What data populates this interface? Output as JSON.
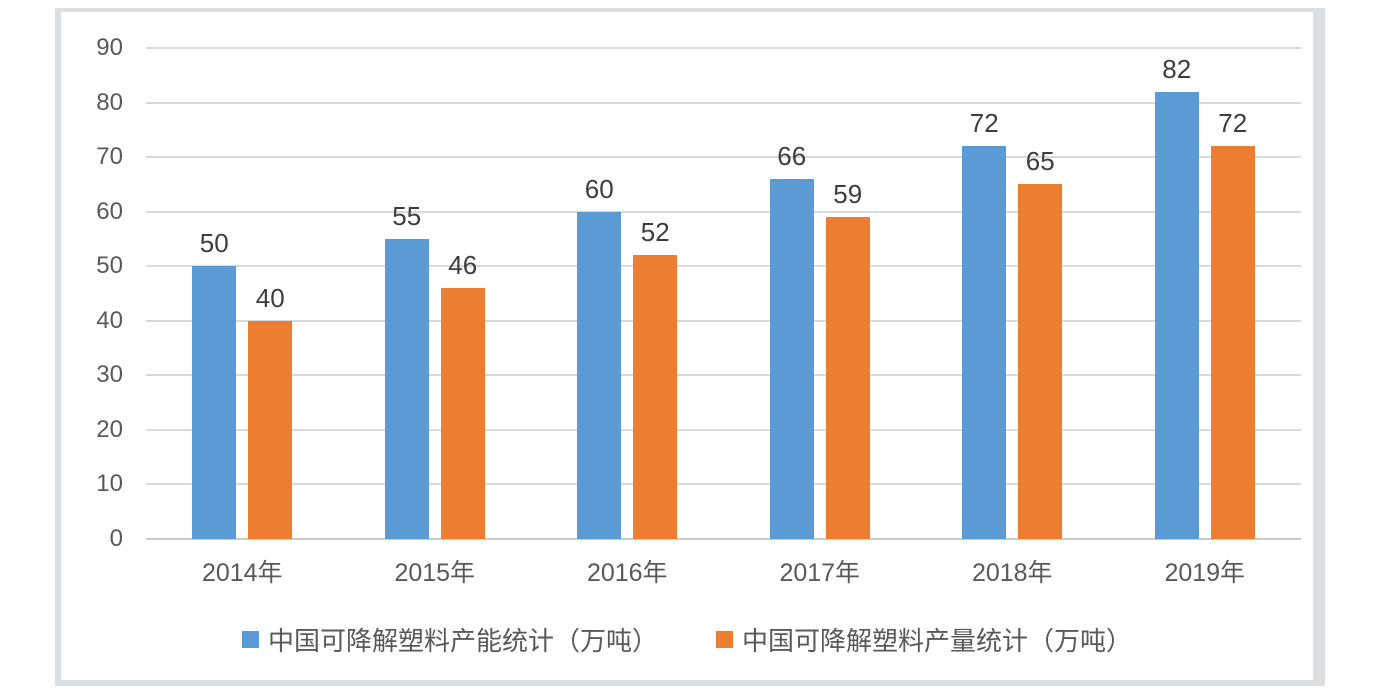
{
  "chart_data": {
    "type": "bar",
    "title": "",
    "xlabel": "",
    "ylabel": "",
    "categories": [
      "2014年",
      "2015年",
      "2016年",
      "2017年",
      "2018年",
      "2019年"
    ],
    "series": [
      {
        "name": "中国可降解塑料产能统计（万吨）",
        "values": [
          50,
          55,
          60,
          66,
          72,
          82
        ],
        "color": "#5b9bd5"
      },
      {
        "name": "中国可降解塑料产量统计（万吨）",
        "values": [
          40,
          46,
          52,
          59,
          65,
          72
        ],
        "color": "#ed7d31"
      }
    ],
    "yticks": [
      0,
      10,
      20,
      30,
      40,
      50,
      60,
      70,
      80,
      90
    ],
    "ylim": [
      0,
      90
    ],
    "grid": true,
    "gridline_color": "#d9d9d9",
    "data_labels": true,
    "legend_position": "bottom",
    "tick_label_color": "#595959",
    "data_label_color": "#3d3d3d"
  }
}
